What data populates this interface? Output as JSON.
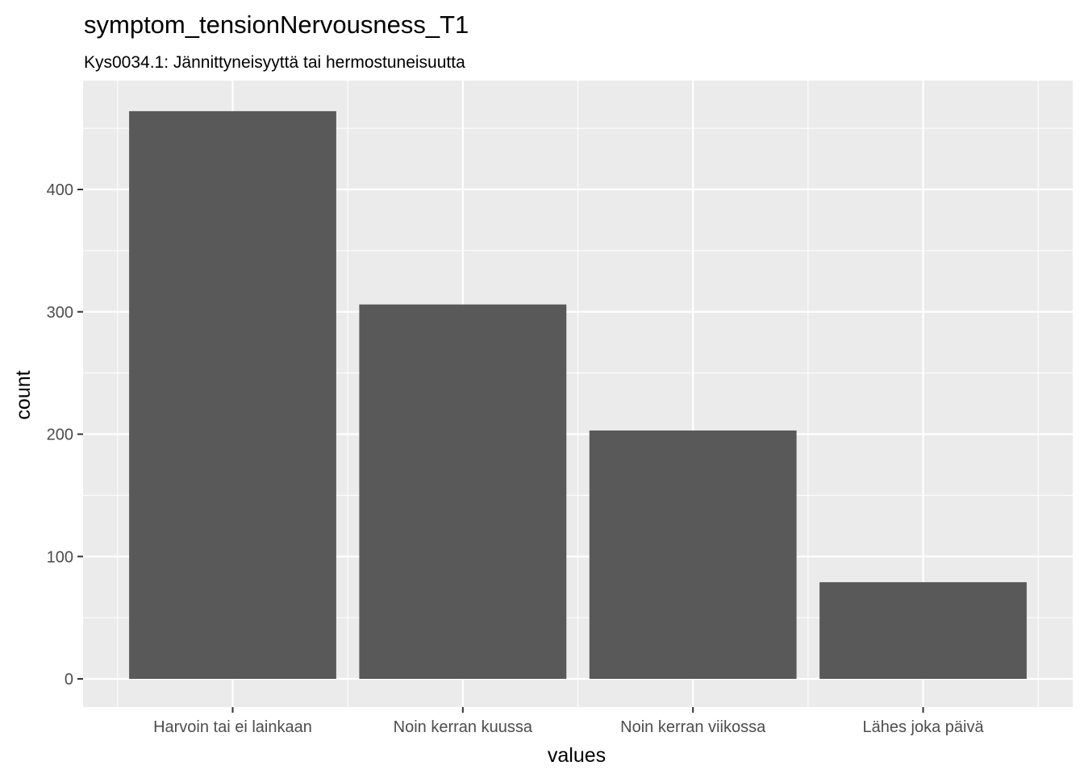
{
  "chart_data": {
    "type": "bar",
    "title": "symptom_tensionNervousness_T1",
    "subtitle": "Kys0034.1: Jännittyneisyyttä tai hermostuneisuutta",
    "xlabel": "values",
    "ylabel": "count",
    "categories": [
      "Harvoin tai ei lainkaan",
      "Noin kerran kuussa",
      "Noin kerran viikossa",
      "Lähes joka päivä"
    ],
    "values": [
      464,
      306,
      203,
      79
    ],
    "ylim": [
      -22,
      486
    ],
    "yticks": [
      0,
      100,
      200,
      300,
      400
    ],
    "grid": true,
    "legend": "none",
    "colors": {
      "panel_background": "#ebebeb",
      "grid_major": "#ffffff",
      "bar_fill": "#595959",
      "tick_text": "#4d4d4d",
      "tick_mark": "#333333"
    }
  }
}
